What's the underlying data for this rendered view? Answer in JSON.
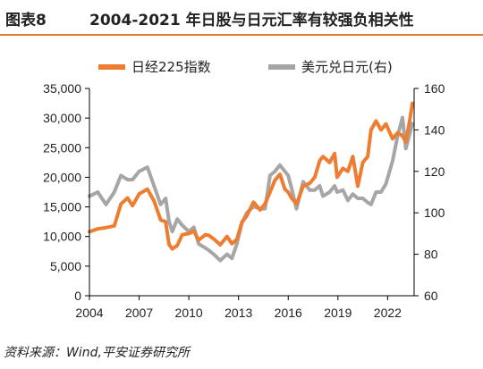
{
  "header": {
    "figure_label": "图表8",
    "title": "2004-2021 年日股与日元汇率有较强负相关性"
  },
  "source": "资料来源：Wind,平安证券研究所",
  "colors": {
    "nikkei": "#ee7d31",
    "usdjpy": "#a6a6a6",
    "accent_rule": "#e07b2a",
    "axis": "#000000"
  },
  "chart_data": {
    "type": "line",
    "title": "2004-2021 年日股与日元汇率有较强负相关性",
    "x_ticks": [
      "2004",
      "2007",
      "2010",
      "2013",
      "2016",
      "2019",
      "2022"
    ],
    "xlim": [
      2004,
      2023.6
    ],
    "y_left": {
      "ylim": [
        0,
        35000
      ],
      "ticks": [
        "0",
        "5,000",
        "10,000",
        "15,000",
        "20,000",
        "25,000",
        "30,000",
        "35,000"
      ]
    },
    "y_right": {
      "ylim": [
        60,
        160
      ],
      "ticks": [
        "60",
        "80",
        "100",
        "120",
        "140",
        "160"
      ]
    },
    "legend_position": "top",
    "series": [
      {
        "name": "日经225指数",
        "axis": "left",
        "x": [
          2004.0,
          2004.5,
          2005.0,
          2005.5,
          2005.9,
          2006.3,
          2006.6,
          2007.0,
          2007.5,
          2007.9,
          2008.3,
          2008.6,
          2008.8,
          2009.0,
          2009.3,
          2009.6,
          2010.0,
          2010.3,
          2010.6,
          2011.0,
          2011.2,
          2011.5,
          2011.9,
          2012.3,
          2012.6,
          2012.9,
          2013.2,
          2013.5,
          2013.9,
          2014.3,
          2014.6,
          2014.9,
          2015.2,
          2015.5,
          2015.8,
          2016.0,
          2016.2,
          2016.5,
          2016.9,
          2017.3,
          2017.6,
          2017.9,
          2018.1,
          2018.5,
          2018.8,
          2018.95,
          2019.3,
          2019.6,
          2019.9,
          2020.2,
          2020.5,
          2020.8,
          2021.0,
          2021.3,
          2021.6,
          2021.9,
          2022.3,
          2022.6,
          2022.9,
          2023.1,
          2023.3,
          2023.5
        ],
        "values": [
          10800,
          11300,
          11500,
          11800,
          15500,
          16500,
          15200,
          17200,
          18000,
          16000,
          12800,
          12500,
          8700,
          7900,
          8500,
          10300,
          10500,
          10900,
          9400,
          10300,
          10200,
          9600,
          8600,
          10000,
          8800,
          9500,
          12400,
          13500,
          15800,
          14500,
          15500,
          17500,
          19500,
          20500,
          18000,
          17500,
          16500,
          15500,
          18500,
          19000,
          20000,
          22800,
          23500,
          22500,
          24000,
          20000,
          21500,
          21000,
          23500,
          18500,
          22500,
          23500,
          28000,
          29500,
          28000,
          29000,
          26500,
          27500,
          27000,
          26000,
          29000,
          32500
        ]
      },
      {
        "name": "美元兑日元(右)",
        "axis": "right",
        "x": [
          2004.0,
          2004.5,
          2005.0,
          2005.5,
          2005.9,
          2006.3,
          2006.6,
          2007.0,
          2007.5,
          2007.9,
          2008.3,
          2008.6,
          2008.8,
          2009.0,
          2009.3,
          2009.6,
          2010.0,
          2010.3,
          2010.6,
          2011.0,
          2011.2,
          2011.5,
          2011.9,
          2012.3,
          2012.6,
          2012.9,
          2013.2,
          2013.5,
          2013.9,
          2014.3,
          2014.6,
          2014.9,
          2015.2,
          2015.5,
          2015.8,
          2016.0,
          2016.2,
          2016.5,
          2016.9,
          2017.3,
          2017.6,
          2017.9,
          2018.1,
          2018.5,
          2018.8,
          2018.95,
          2019.3,
          2019.6,
          2019.9,
          2020.2,
          2020.5,
          2020.8,
          2021.0,
          2021.3,
          2021.6,
          2021.9,
          2022.3,
          2022.6,
          2022.9,
          2023.1,
          2023.3,
          2023.5
        ],
        "values": [
          108,
          110,
          104,
          110,
          118,
          116,
          116,
          120,
          122,
          113,
          104,
          107,
          96,
          91,
          97,
          94,
          91,
          93,
          85,
          83,
          82,
          80,
          77,
          80,
          78,
          85,
          95,
          100,
          103,
          102,
          102,
          118,
          120,
          123,
          120,
          118,
          112,
          102,
          115,
          111,
          111,
          113,
          108,
          110,
          113,
          110,
          111,
          106,
          109,
          107,
          107,
          105,
          104,
          110,
          110,
          114,
          125,
          137,
          146,
          131,
          137,
          143
        ]
      }
    ]
  }
}
